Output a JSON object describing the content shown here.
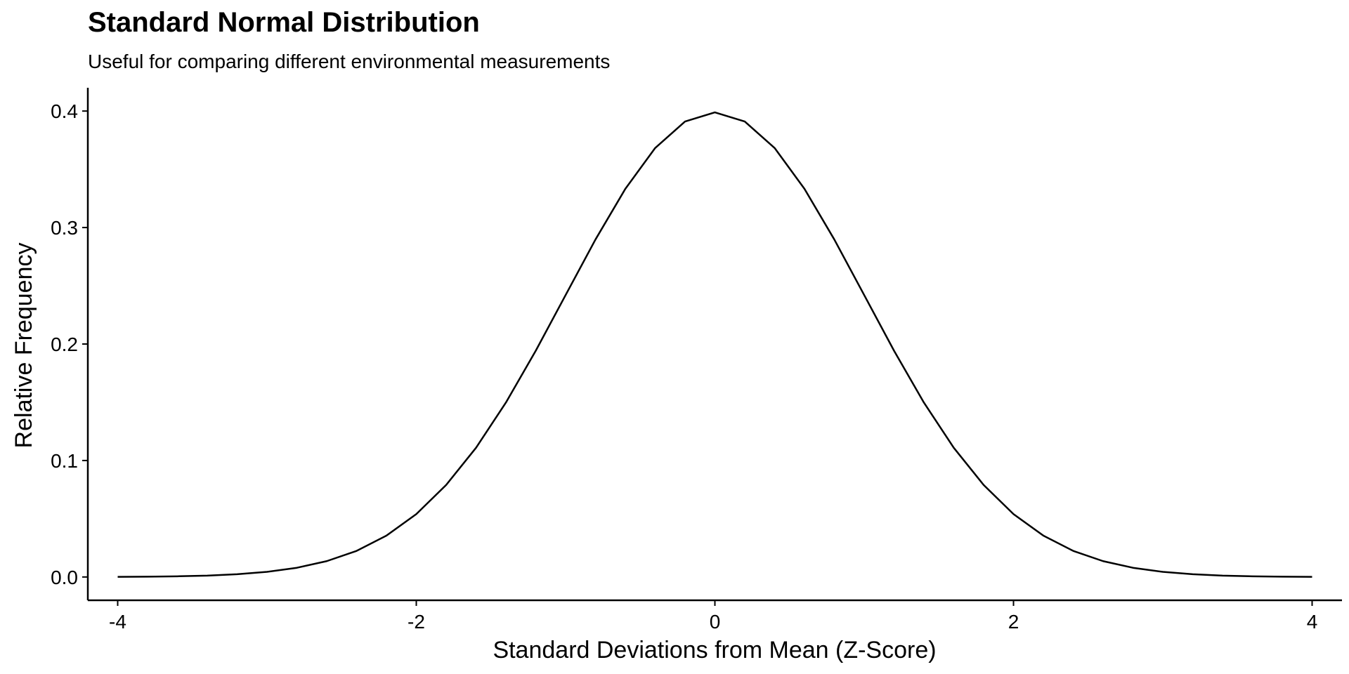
{
  "chart_data": {
    "type": "line",
    "title": "Standard Normal Distribution",
    "subtitle": "Useful for comparing different environmental measurements",
    "xlabel": "Standard Deviations from Mean (Z-Score)",
    "ylabel": "Relative Frequency",
    "xlim": [
      -4.2,
      4.2
    ],
    "ylim": [
      -0.02,
      0.42
    ],
    "x_ticks": [
      -4,
      -2,
      0,
      2,
      4
    ],
    "x_tick_labels": [
      "-4",
      "-2",
      "0",
      "2",
      "4"
    ],
    "y_ticks": [
      0.0,
      0.1,
      0.2,
      0.3,
      0.4
    ],
    "y_tick_labels": [
      "0.0",
      "0.1",
      "0.2",
      "0.3",
      "0.4"
    ],
    "grid": false,
    "line_color": "#000000",
    "series": [
      {
        "x": [
          -4.0,
          -3.8,
          -3.6,
          -3.4,
          -3.2,
          -3.0,
          -2.8,
          -2.6,
          -2.4,
          -2.2,
          -2.0,
          -1.8,
          -1.6,
          -1.4,
          -1.2,
          -1.0,
          -0.8,
          -0.6,
          -0.4,
          -0.2,
          0.0,
          0.2,
          0.4,
          0.6,
          0.8,
          1.0,
          1.2,
          1.4,
          1.6,
          1.8,
          2.0,
          2.2,
          2.4,
          2.6,
          2.8,
          3.0,
          3.2,
          3.4,
          3.6,
          3.8,
          4.0
        ],
        "values": [
          0.0001,
          0.0003,
          0.0006,
          0.0012,
          0.0024,
          0.0044,
          0.0079,
          0.0136,
          0.0224,
          0.0355,
          0.054,
          0.079,
          0.1109,
          0.1497,
          0.1942,
          0.242,
          0.2897,
          0.3332,
          0.3683,
          0.391,
          0.3989,
          0.391,
          0.3683,
          0.3332,
          0.2897,
          0.242,
          0.1942,
          0.1497,
          0.1109,
          0.079,
          0.054,
          0.0355,
          0.0224,
          0.0136,
          0.0079,
          0.0044,
          0.0024,
          0.0012,
          0.0006,
          0.0003,
          0.0001
        ]
      }
    ]
  }
}
